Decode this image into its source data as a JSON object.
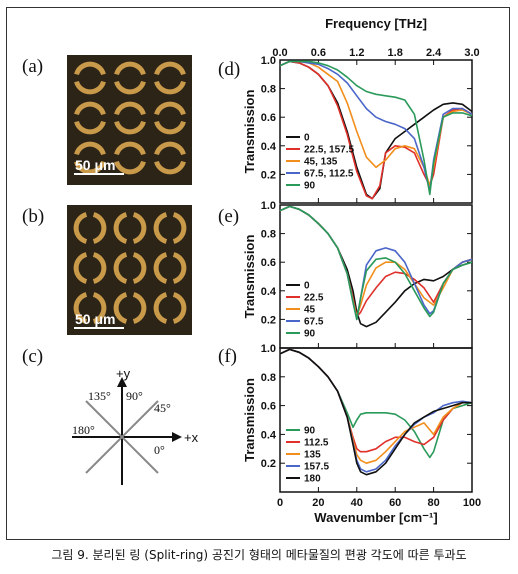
{
  "caption": "그림 9. 분리된 링 (Split-ring) 공진기 형태의 메타물질의 편광 각도에 따른 투과도",
  "panel_labels": [
    "(a)",
    "(b)",
    "(c)",
    "(d)",
    "(e)",
    "(f)"
  ],
  "micrograph": {
    "scale_label": "50 μm"
  },
  "diagram": {
    "y_label": "+y",
    "x_label": "+x",
    "angles": [
      "135°",
      "90°",
      "45°",
      "180°",
      "0°"
    ]
  },
  "axes": {
    "ylabel": "Transmission",
    "xlabel": "Wavenumber [cm⁻¹]",
    "top_xlabel": "Frequency [THz]",
    "top_ticks": [
      "0.0",
      "0.6",
      "1.2",
      "1.8",
      "2.4",
      "3.0"
    ],
    "y_ticks": [
      "0.2",
      "0.4",
      "0.6",
      "0.8",
      "1.0"
    ],
    "x_ticks": [
      "0",
      "20",
      "40",
      "60",
      "80",
      "100"
    ]
  },
  "chart_data": [
    {
      "type": "line",
      "panel": "(d)",
      "xlabel": "Wavenumber [cm⁻¹]",
      "ylabel": "Transmission",
      "top_xlabel": "Frequency [THz]",
      "xlim": [
        0,
        100
      ],
      "ylim": [
        0,
        1.0
      ],
      "series": [
        {
          "name": "0",
          "color": "#111111",
          "x": [
            0,
            5,
            10,
            15,
            20,
            25,
            30,
            35,
            40,
            45,
            48,
            52,
            55,
            60,
            65,
            70,
            75,
            80,
            85,
            90,
            95,
            100
          ],
          "y": [
            0.96,
            0.99,
            0.98,
            0.95,
            0.9,
            0.82,
            0.7,
            0.5,
            0.25,
            0.06,
            0.03,
            0.1,
            0.35,
            0.45,
            0.5,
            0.55,
            0.6,
            0.65,
            0.69,
            0.7,
            0.69,
            0.64
          ]
        },
        {
          "name": "22.5, 157.5",
          "color": "#e0302a",
          "x": [
            0,
            5,
            10,
            15,
            20,
            25,
            30,
            35,
            40,
            45,
            48,
            52,
            55,
            60,
            65,
            70,
            75,
            78,
            80,
            85,
            90,
            95,
            100
          ],
          "y": [
            0.96,
            0.99,
            0.98,
            0.95,
            0.9,
            0.82,
            0.68,
            0.48,
            0.22,
            0.05,
            0.03,
            0.12,
            0.35,
            0.4,
            0.39,
            0.35,
            0.2,
            0.12,
            0.2,
            0.6,
            0.65,
            0.66,
            0.62
          ]
        },
        {
          "name": "45, 135",
          "color": "#f28e1c",
          "x": [
            0,
            5,
            10,
            15,
            20,
            25,
            30,
            35,
            40,
            45,
            50,
            55,
            60,
            65,
            70,
            75,
            78,
            80,
            85,
            90,
            95,
            100
          ],
          "y": [
            0.96,
            0.99,
            0.99,
            0.98,
            0.95,
            0.9,
            0.85,
            0.7,
            0.5,
            0.32,
            0.25,
            0.3,
            0.38,
            0.4,
            0.38,
            0.25,
            0.12,
            0.25,
            0.6,
            0.64,
            0.65,
            0.62
          ]
        },
        {
          "name": "67.5, 112.5",
          "color": "#4a66c8",
          "x": [
            0,
            5,
            10,
            15,
            20,
            25,
            30,
            35,
            40,
            45,
            50,
            55,
            60,
            65,
            70,
            75,
            78,
            80,
            85,
            90,
            95,
            100
          ],
          "y": [
            0.96,
            0.99,
            0.99,
            0.98,
            0.97,
            0.94,
            0.9,
            0.84,
            0.75,
            0.66,
            0.6,
            0.57,
            0.55,
            0.52,
            0.45,
            0.25,
            0.08,
            0.3,
            0.62,
            0.66,
            0.66,
            0.62
          ]
        },
        {
          "name": "90",
          "color": "#2a9a5a",
          "x": [
            0,
            5,
            10,
            15,
            20,
            25,
            30,
            35,
            40,
            45,
            50,
            55,
            60,
            65,
            70,
            75,
            78,
            80,
            85,
            90,
            95,
            100
          ],
          "y": [
            0.96,
            0.99,
            0.99,
            0.99,
            0.98,
            0.96,
            0.93,
            0.88,
            0.82,
            0.78,
            0.76,
            0.75,
            0.74,
            0.72,
            0.62,
            0.3,
            0.06,
            0.28,
            0.6,
            0.63,
            0.63,
            0.61
          ]
        }
      ]
    },
    {
      "type": "line",
      "panel": "(e)",
      "xlabel": "Wavenumber [cm⁻¹]",
      "ylabel": "Transmission",
      "xlim": [
        0,
        100
      ],
      "ylim": [
        0,
        1.0
      ],
      "series": [
        {
          "name": "0",
          "color": "#111111",
          "x": [
            0,
            5,
            10,
            15,
            20,
            25,
            30,
            35,
            38,
            40,
            42,
            45,
            50,
            55,
            60,
            65,
            70,
            75,
            80,
            85,
            90,
            95,
            100
          ],
          "y": [
            0.96,
            0.99,
            0.97,
            0.93,
            0.87,
            0.8,
            0.7,
            0.55,
            0.4,
            0.25,
            0.17,
            0.15,
            0.18,
            0.25,
            0.32,
            0.4,
            0.45,
            0.48,
            0.47,
            0.5,
            0.55,
            0.58,
            0.6
          ]
        },
        {
          "name": "22.5",
          "color": "#e0302a",
          "x": [
            0,
            5,
            10,
            15,
            20,
            25,
            30,
            35,
            38,
            40,
            42,
            45,
            50,
            55,
            60,
            65,
            70,
            75,
            80,
            85,
            90,
            95,
            100
          ],
          "y": [
            0.96,
            0.99,
            0.97,
            0.93,
            0.87,
            0.8,
            0.7,
            0.52,
            0.35,
            0.22,
            0.25,
            0.33,
            0.42,
            0.5,
            0.53,
            0.52,
            0.48,
            0.42,
            0.32,
            0.45,
            0.55,
            0.6,
            0.62
          ]
        },
        {
          "name": "45",
          "color": "#f28e1c",
          "x": [
            0,
            5,
            10,
            15,
            20,
            25,
            30,
            35,
            38,
            40,
            42,
            45,
            50,
            55,
            60,
            65,
            70,
            75,
            80,
            85,
            90,
            95,
            100
          ],
          "y": [
            0.96,
            0.99,
            0.97,
            0.93,
            0.87,
            0.8,
            0.7,
            0.52,
            0.33,
            0.22,
            0.3,
            0.44,
            0.56,
            0.6,
            0.6,
            0.55,
            0.45,
            0.35,
            0.3,
            0.42,
            0.55,
            0.6,
            0.62
          ]
        },
        {
          "name": "67.5",
          "color": "#4a66c8",
          "x": [
            0,
            5,
            10,
            15,
            20,
            25,
            30,
            35,
            38,
            40,
            42,
            45,
            50,
            55,
            60,
            65,
            70,
            75,
            78,
            80,
            85,
            90,
            95,
            100
          ],
          "y": [
            0.96,
            0.99,
            0.97,
            0.93,
            0.87,
            0.8,
            0.7,
            0.52,
            0.32,
            0.2,
            0.35,
            0.58,
            0.68,
            0.7,
            0.68,
            0.6,
            0.45,
            0.3,
            0.24,
            0.26,
            0.45,
            0.55,
            0.6,
            0.62
          ]
        },
        {
          "name": "90",
          "color": "#2a9a5a",
          "x": [
            0,
            5,
            10,
            15,
            20,
            25,
            30,
            35,
            38,
            40,
            42,
            45,
            50,
            55,
            60,
            65,
            70,
            75,
            78,
            80,
            85,
            90,
            95,
            100
          ],
          "y": [
            0.96,
            0.99,
            0.97,
            0.93,
            0.87,
            0.8,
            0.7,
            0.52,
            0.32,
            0.2,
            0.35,
            0.54,
            0.62,
            0.63,
            0.6,
            0.52,
            0.4,
            0.28,
            0.22,
            0.25,
            0.45,
            0.55,
            0.58,
            0.6
          ]
        }
      ]
    },
    {
      "type": "line",
      "panel": "(f)",
      "xlabel": "Wavenumber [cm⁻¹]",
      "ylabel": "Transmission",
      "xlim": [
        0,
        100
      ],
      "ylim": [
        0,
        1.0
      ],
      "series": [
        {
          "name": "90",
          "color": "#2a9a5a",
          "x": [
            0,
            5,
            10,
            15,
            20,
            25,
            30,
            35,
            38,
            40,
            42,
            45,
            50,
            55,
            60,
            65,
            70,
            75,
            78,
            80,
            85,
            90,
            95,
            100
          ],
          "y": [
            0.96,
            0.99,
            0.97,
            0.93,
            0.87,
            0.8,
            0.7,
            0.55,
            0.45,
            0.5,
            0.54,
            0.55,
            0.55,
            0.55,
            0.54,
            0.5,
            0.42,
            0.3,
            0.24,
            0.28,
            0.5,
            0.58,
            0.6,
            0.62
          ]
        },
        {
          "name": "112.5",
          "color": "#e0302a",
          "x": [
            0,
            5,
            10,
            15,
            20,
            25,
            30,
            35,
            38,
            40,
            42,
            45,
            50,
            55,
            60,
            65,
            70,
            75,
            80,
            85,
            90,
            95,
            100
          ],
          "y": [
            0.96,
            0.99,
            0.97,
            0.93,
            0.87,
            0.8,
            0.7,
            0.52,
            0.38,
            0.3,
            0.28,
            0.28,
            0.3,
            0.35,
            0.38,
            0.38,
            0.35,
            0.33,
            0.38,
            0.5,
            0.58,
            0.62,
            0.62
          ]
        },
        {
          "name": "135",
          "color": "#f28e1c",
          "x": [
            0,
            5,
            10,
            15,
            20,
            25,
            30,
            35,
            38,
            40,
            42,
            45,
            50,
            55,
            60,
            65,
            70,
            75,
            80,
            85,
            90,
            95,
            100
          ],
          "y": [
            0.96,
            0.99,
            0.97,
            0.93,
            0.87,
            0.8,
            0.7,
            0.52,
            0.36,
            0.26,
            0.22,
            0.2,
            0.22,
            0.28,
            0.35,
            0.42,
            0.45,
            0.48,
            0.4,
            0.52,
            0.58,
            0.62,
            0.62
          ]
        },
        {
          "name": "157.5",
          "color": "#4a66c8",
          "x": [
            0,
            5,
            10,
            15,
            20,
            25,
            30,
            35,
            38,
            40,
            42,
            45,
            50,
            55,
            60,
            65,
            70,
            75,
            80,
            85,
            90,
            95,
            100
          ],
          "y": [
            0.96,
            0.99,
            0.97,
            0.93,
            0.87,
            0.8,
            0.7,
            0.52,
            0.34,
            0.22,
            0.16,
            0.14,
            0.16,
            0.22,
            0.32,
            0.4,
            0.47,
            0.52,
            0.55,
            0.6,
            0.62,
            0.63,
            0.62
          ]
        },
        {
          "name": "180",
          "color": "#111111",
          "x": [
            0,
            5,
            10,
            15,
            20,
            25,
            30,
            35,
            38,
            40,
            42,
            45,
            50,
            55,
            60,
            65,
            70,
            75,
            80,
            85,
            90,
            95,
            100
          ],
          "y": [
            0.96,
            0.99,
            0.97,
            0.93,
            0.87,
            0.8,
            0.7,
            0.52,
            0.33,
            0.2,
            0.14,
            0.12,
            0.14,
            0.2,
            0.3,
            0.4,
            0.48,
            0.52,
            0.56,
            0.58,
            0.6,
            0.62,
            0.62
          ]
        }
      ]
    }
  ]
}
